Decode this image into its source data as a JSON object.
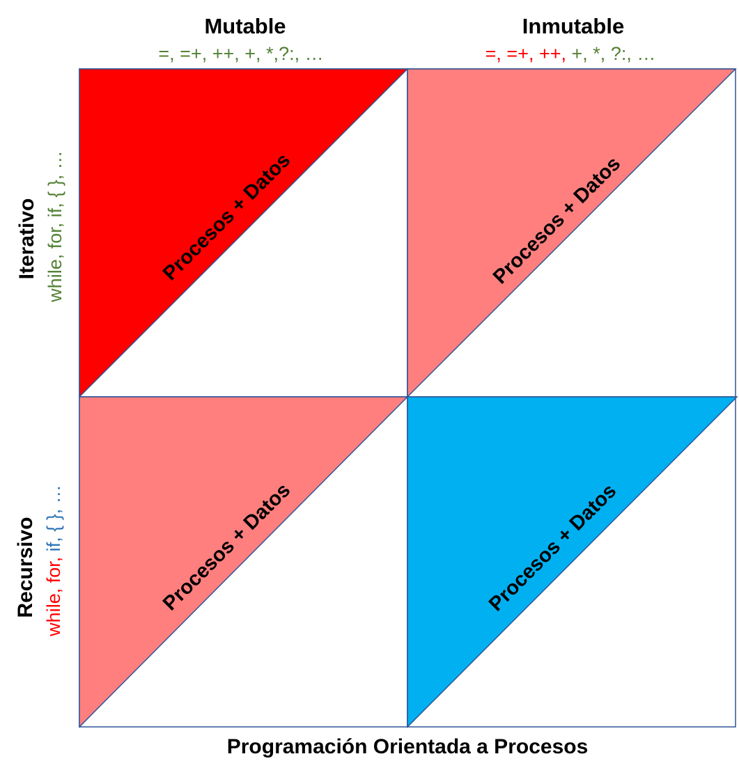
{
  "diagram": {
    "x_axis_label": "Programación Orientada a Procesos",
    "columns": [
      {
        "title": "Mutable",
        "operators": [
          {
            "text": "=,",
            "color": "green"
          },
          {
            "text": " =+,",
            "color": "green"
          },
          {
            "text": " ++,",
            "color": "green"
          },
          {
            "text": " +,",
            "color": "green"
          },
          {
            "text": " *,",
            "color": "green"
          },
          {
            "text": "?:,",
            "color": "green"
          },
          {
            "text": " …",
            "color": "green"
          }
        ]
      },
      {
        "title": "Inmutable",
        "operators": [
          {
            "text": "=,",
            "color": "red"
          },
          {
            "text": " =+,",
            "color": "red"
          },
          {
            "text": " ++,",
            "color": "red"
          },
          {
            "text": " +,",
            "color": "green"
          },
          {
            "text": " *,",
            "color": "green"
          },
          {
            "text": " ?:,",
            "color": "green"
          },
          {
            "text": " …",
            "color": "green"
          }
        ]
      }
    ],
    "rows": [
      {
        "title": "Iterativo",
        "keywords": [
          {
            "text": "while,",
            "color": "green"
          },
          {
            "text": " for,",
            "color": "green"
          },
          {
            "text": " if,",
            "color": "green"
          },
          {
            "text": " { },",
            "color": "green"
          },
          {
            "text": " …",
            "color": "green"
          }
        ]
      },
      {
        "title": "Recursivo",
        "keywords": [
          {
            "text": "while,",
            "color": "red"
          },
          {
            "text": " for,",
            "color": "red"
          },
          {
            "text": " if,",
            "color": "blue"
          },
          {
            "text": " { },",
            "color": "blue"
          },
          {
            "text": " …",
            "color": "blue"
          }
        ]
      }
    ],
    "cells": [
      {
        "row": 0,
        "col": 0,
        "label": "Procesos + Datos",
        "fill": "#ff0000",
        "orientation": "upper-left"
      },
      {
        "row": 0,
        "col": 1,
        "label": "Procesos + Datos",
        "fill": "#ff7f7f",
        "orientation": "lower-right"
      },
      {
        "row": 1,
        "col": 0,
        "label": "Procesos + Datos",
        "fill": "#ff7f7f",
        "orientation": "lower-right"
      },
      {
        "row": 1,
        "col": 1,
        "label": "Procesos + Datos",
        "fill": "#00b0f0",
        "orientation": "lower-right"
      }
    ],
    "colors": {
      "green": "#538135",
      "red": "#ff0000",
      "blue": "#2e75b6",
      "border": "#2f5597",
      "text": "#000000"
    }
  }
}
